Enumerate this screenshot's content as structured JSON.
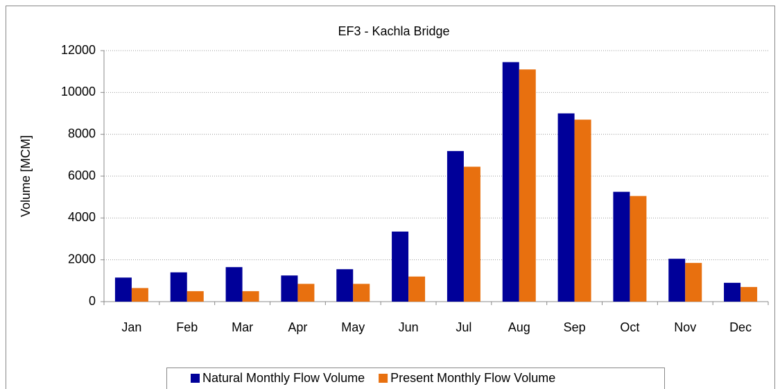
{
  "chart_data": {
    "type": "bar",
    "title": "EF3 - Kachla Bridge",
    "y_label": "Volume [MCM]",
    "categories": [
      "Jan",
      "Feb",
      "Mar",
      "Apr",
      "May",
      "Jun",
      "Jul",
      "Aug",
      "Sep",
      "Oct",
      "Nov",
      "Dec"
    ],
    "series": [
      {
        "name": "Natural Monthly Flow Volume",
        "color": "#000099",
        "values": [
          1150,
          1400,
          1650,
          1250,
          1550,
          3350,
          7200,
          11450,
          9000,
          5250,
          2050,
          900
        ]
      },
      {
        "name": "Present Monthly Flow Volume",
        "color": "#e8700f",
        "values": [
          650,
          500,
          500,
          850,
          850,
          1200,
          6450,
          11100,
          8700,
          5050,
          1850,
          700
        ]
      }
    ],
    "ylim": [
      0,
      12000
    ],
    "yticks": [
      0,
      2000,
      4000,
      6000,
      8000,
      10000,
      12000
    ],
    "grid": true,
    "legend": "bottom"
  }
}
